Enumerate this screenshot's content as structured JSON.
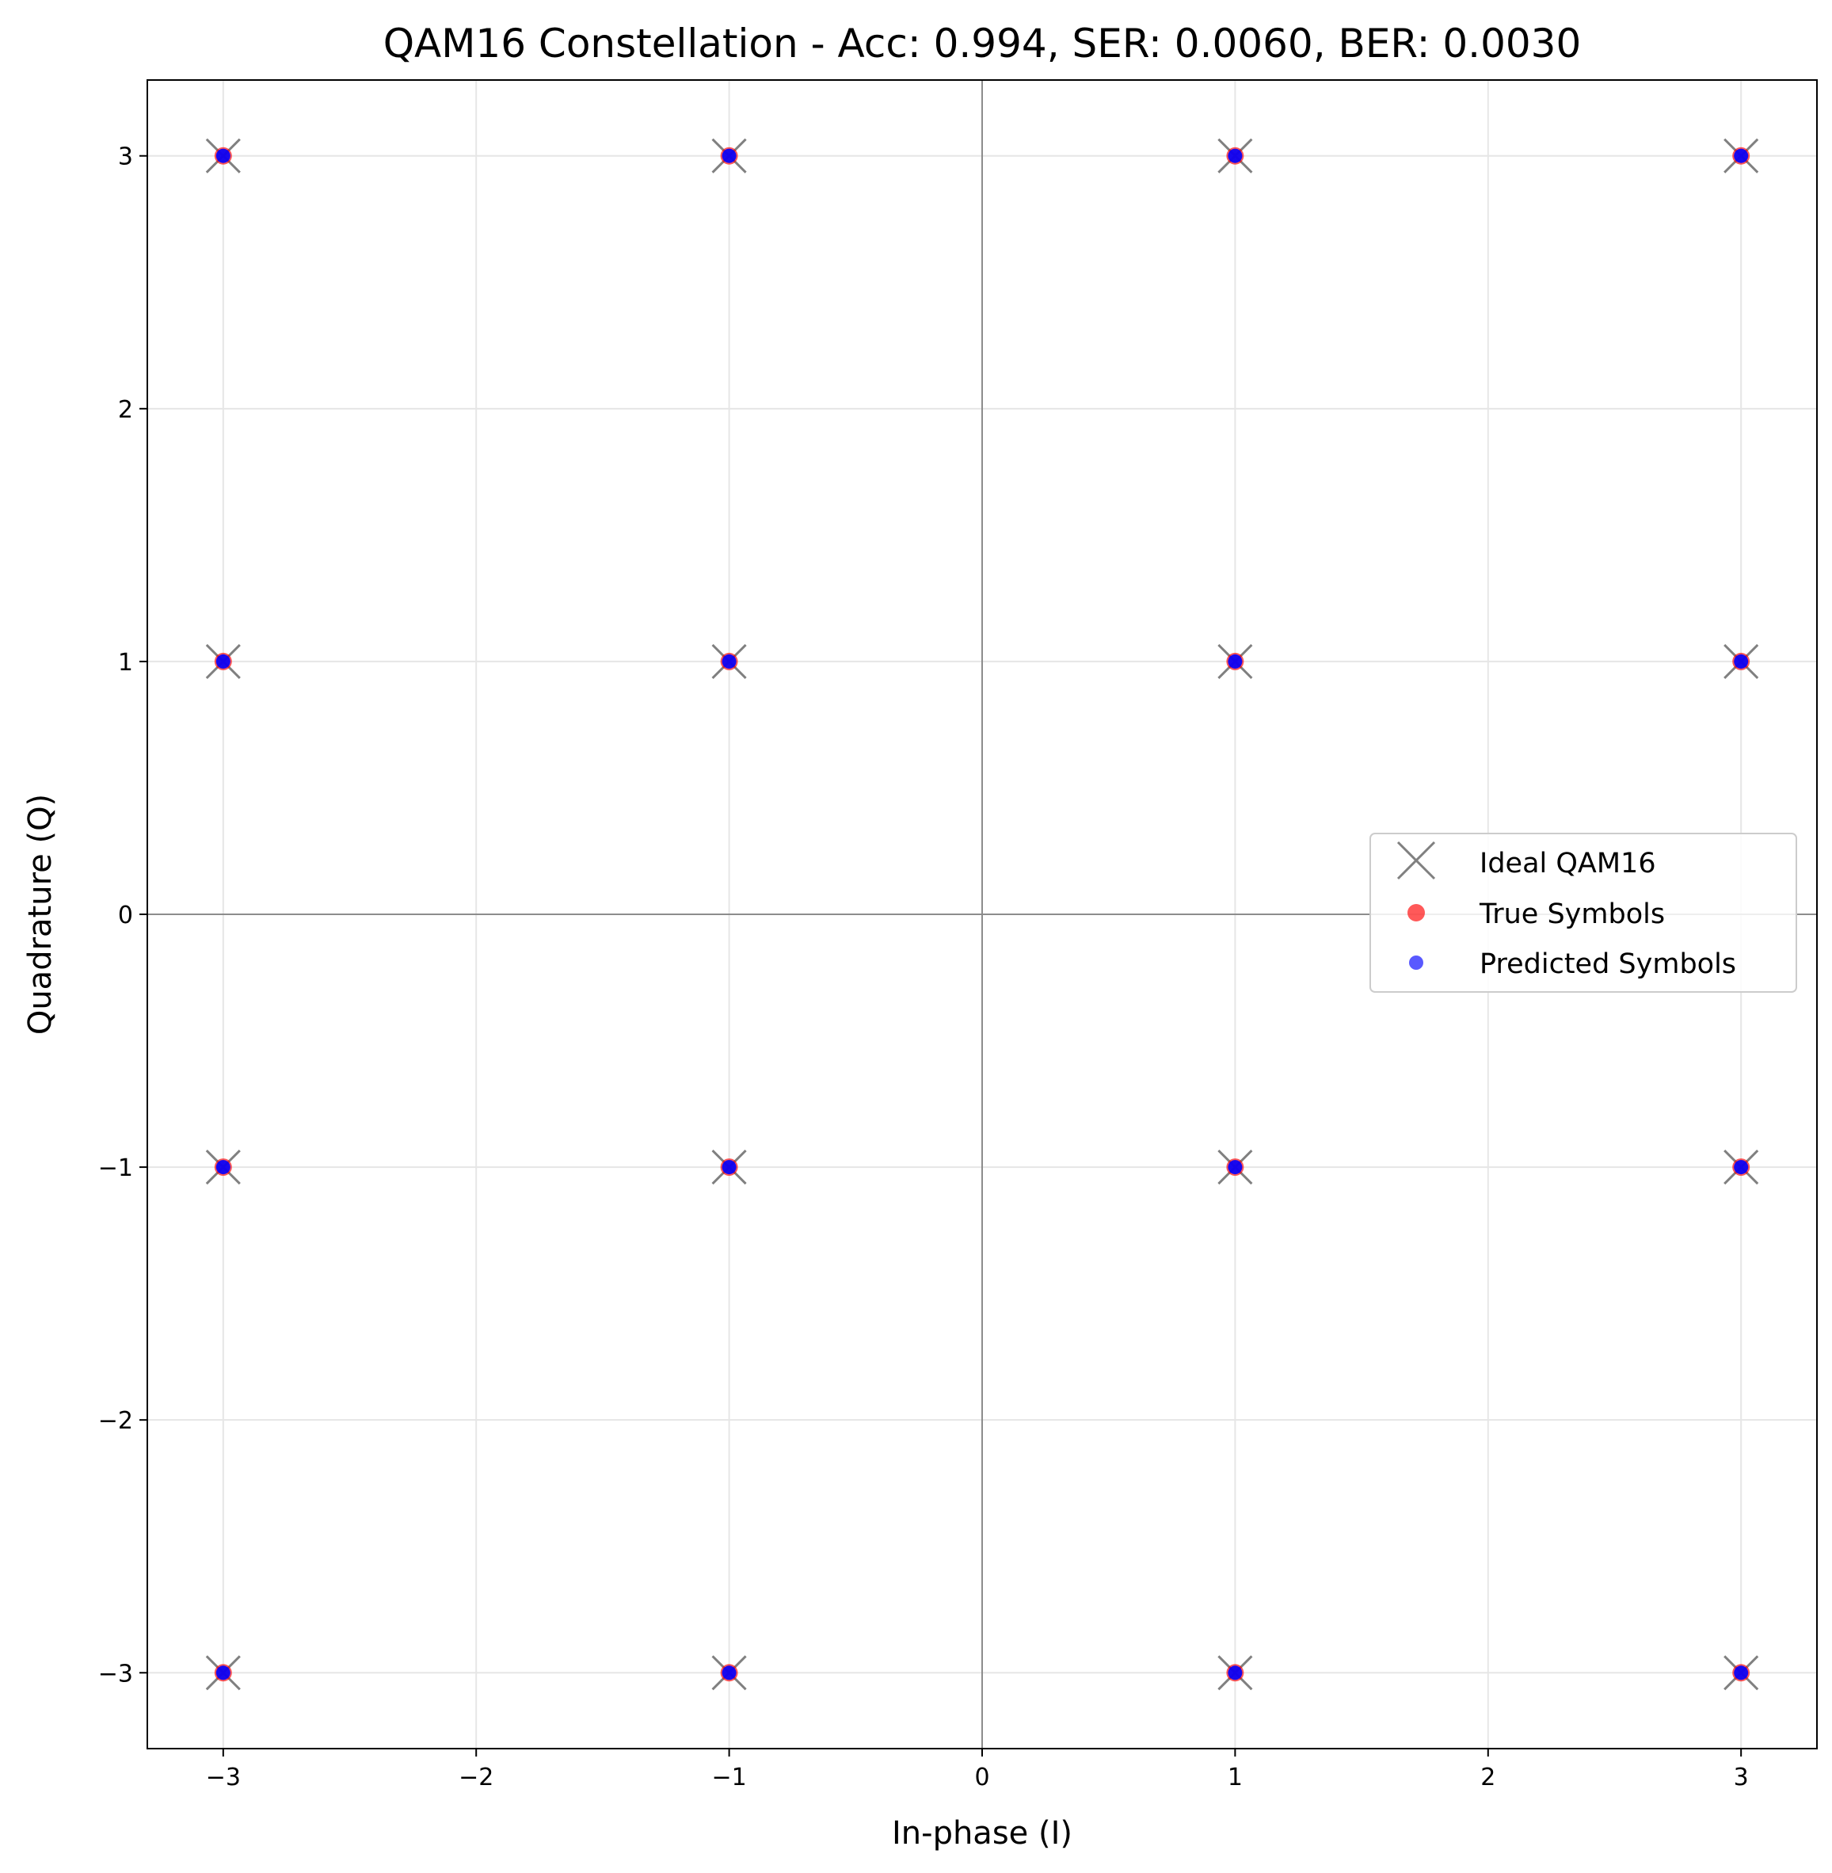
{
  "chart_data": {
    "type": "scatter",
    "title": "QAM16 Constellation - Acc: 0.994, SER: 0.0060, BER: 0.0030",
    "xlabel": "In-phase (I)",
    "ylabel": "Quadrature (Q)",
    "xlim": [
      -3.3,
      3.3
    ],
    "ylim": [
      -3.3,
      3.3
    ],
    "xticks": [
      -3,
      -2,
      -1,
      0,
      1,
      2,
      3
    ],
    "yticks": [
      -3,
      -2,
      -1,
      0,
      1,
      2,
      3
    ],
    "grid": true,
    "legend_position": "center-right",
    "series": [
      {
        "name": "Ideal QAM16",
        "marker": "x",
        "color": "#808080",
        "points": [
          [
            -3,
            3
          ],
          [
            -1,
            3
          ],
          [
            1,
            3
          ],
          [
            3,
            3
          ],
          [
            -3,
            1
          ],
          [
            -1,
            1
          ],
          [
            1,
            1
          ],
          [
            3,
            1
          ],
          [
            -3,
            -1
          ],
          [
            -1,
            -1
          ],
          [
            1,
            -1
          ],
          [
            3,
            -1
          ],
          [
            -3,
            -3
          ],
          [
            -1,
            -3
          ],
          [
            1,
            -3
          ],
          [
            3,
            -3
          ]
        ]
      },
      {
        "name": "True Symbols",
        "marker": "circle",
        "color": "#ff0000",
        "points": [
          [
            -3,
            3
          ],
          [
            -1,
            3
          ],
          [
            1,
            3
          ],
          [
            3,
            3
          ],
          [
            -3,
            1
          ],
          [
            -1,
            1
          ],
          [
            1,
            1
          ],
          [
            3,
            1
          ],
          [
            -3,
            -1
          ],
          [
            -1,
            -1
          ],
          [
            1,
            -1
          ],
          [
            3,
            -1
          ],
          [
            -3,
            -3
          ],
          [
            -1,
            -3
          ],
          [
            1,
            -3
          ],
          [
            3,
            -3
          ]
        ]
      },
      {
        "name": "Predicted Symbols",
        "marker": "circle",
        "color": "#0000ff",
        "points": [
          [
            -3,
            3
          ],
          [
            -1,
            3
          ],
          [
            1,
            3
          ],
          [
            3,
            3
          ],
          [
            -3,
            1
          ],
          [
            -1,
            1
          ],
          [
            1,
            1
          ],
          [
            3,
            1
          ],
          [
            -3,
            -1
          ],
          [
            -1,
            -1
          ],
          [
            1,
            -1
          ],
          [
            3,
            -1
          ],
          [
            -3,
            -3
          ],
          [
            -1,
            -3
          ],
          [
            1,
            -3
          ],
          [
            3,
            -3
          ]
        ]
      }
    ]
  }
}
